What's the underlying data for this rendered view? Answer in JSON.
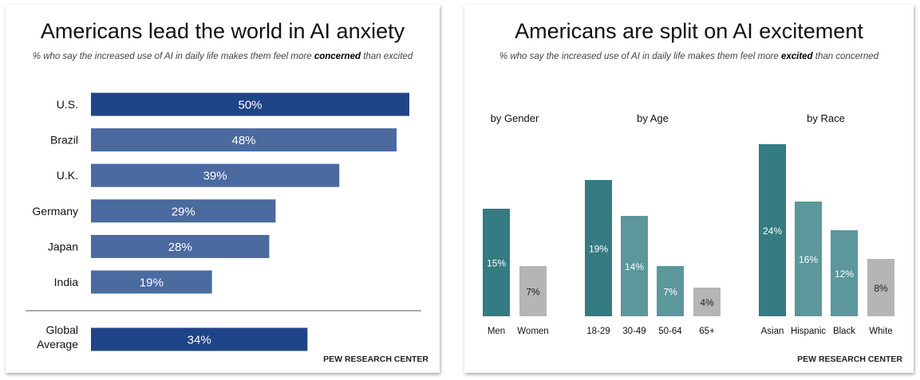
{
  "chart_data": [
    {
      "type": "bar",
      "orientation": "horizontal",
      "title": "Americans lead the world in AI anxiety",
      "subtitle_pre": "% who say the increased use of AI in daily life makes them feel more ",
      "subtitle_bold": "concerned",
      "subtitle_post": " than excited",
      "categories": [
        "U.S.",
        "Brazil",
        "U.K.",
        "Germany",
        "Japan",
        "India"
      ],
      "values": [
        50,
        48,
        39,
        29,
        28,
        19
      ],
      "labels": [
        "50%",
        "48%",
        "39%",
        "29%",
        "28%",
        "19%"
      ],
      "average": {
        "label_line1": "Global",
        "label_line2": "Average",
        "value": 34,
        "text": "34%"
      },
      "source": "PEW RESEARCH CENTER",
      "colors": {
        "highlight": "#1f4488",
        "normal": "#4a6aa0"
      }
    },
    {
      "type": "bar",
      "title": "Americans are split on AI excitement",
      "subtitle_pre": "% who say the increased use of AI in daily life makes them feel more ",
      "subtitle_bold": "excited",
      "subtitle_post": " than concerned",
      "groups": [
        {
          "name": "by Gender",
          "categories": [
            "Men",
            "Women"
          ],
          "values": [
            15,
            7
          ],
          "labels": [
            "15%",
            "7%"
          ],
          "shades": [
            "dark",
            "grey"
          ]
        },
        {
          "name": "by Age",
          "categories": [
            "18-29",
            "30-49",
            "50-64",
            "65+"
          ],
          "values": [
            19,
            14,
            7,
            4
          ],
          "labels": [
            "19%",
            "14%",
            "7%",
            "4%"
          ],
          "shades": [
            "dark",
            "light",
            "light",
            "grey"
          ]
        },
        {
          "name": "by Race",
          "categories": [
            "Asian",
            "Hispanic",
            "Black",
            "White"
          ],
          "values": [
            24,
            16,
            12,
            8
          ],
          "labels": [
            "24%",
            "16%",
            "12%",
            "8%"
          ],
          "shades": [
            "dark",
            "light",
            "light",
            "grey"
          ]
        }
      ],
      "source": "PEW RESEARCH CENTER",
      "colors": {
        "dark": "#347b82",
        "light": "#5c979c",
        "grey": "#b5b5b5"
      }
    }
  ]
}
